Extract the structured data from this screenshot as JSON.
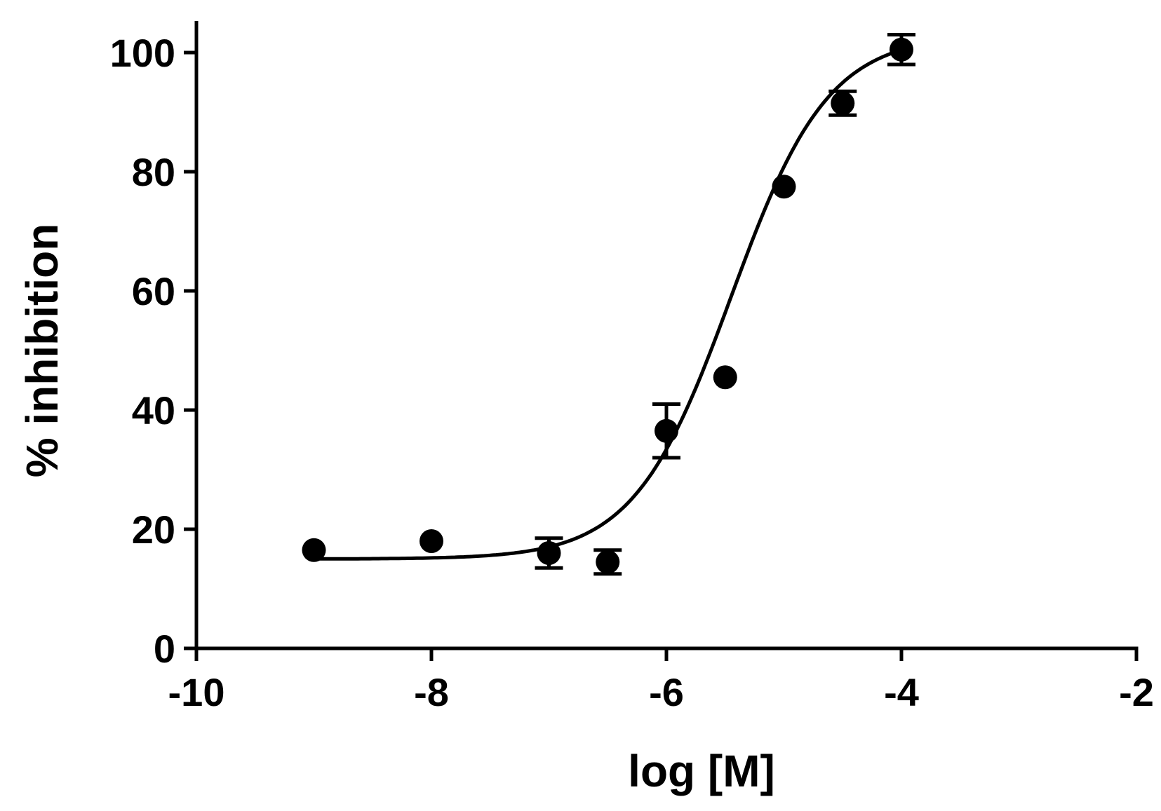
{
  "chart_data": {
    "type": "scatter",
    "title": "",
    "xlabel": "log [M]",
    "ylabel": "% inhibition",
    "xlim": [
      -10,
      -2
    ],
    "ylim": [
      0,
      105
    ],
    "xticks": [
      -10,
      -8,
      -6,
      -4,
      -2
    ],
    "yticks": [
      0,
      20,
      40,
      60,
      80,
      100
    ],
    "xtick_labels": [
      "-10",
      "-8",
      "-6",
      "-4",
      "-2"
    ],
    "ytick_labels": [
      "0",
      "20",
      "40",
      "60",
      "80",
      "100"
    ],
    "grid": false,
    "series": [
      {
        "points": [
          {
            "x": -9,
            "y": 16.5,
            "err": 0
          },
          {
            "x": -8,
            "y": 18,
            "err": 0
          },
          {
            "x": -7,
            "y": 16,
            "err": 2.5
          },
          {
            "x": -6.5,
            "y": 14.5,
            "err": 2
          },
          {
            "x": -6,
            "y": 36.5,
            "err": 4.5
          },
          {
            "x": -5.5,
            "y": 45.5,
            "err": 0
          },
          {
            "x": -5,
            "y": 77.5,
            "err": 0
          },
          {
            "x": -4.5,
            "y": 91.5,
            "err": 2
          },
          {
            "x": -4,
            "y": 100.5,
            "err": 2.5
          }
        ],
        "fit": {
          "model": "sigmoidal dose-response",
          "bottom": 15,
          "top": 103,
          "logEC50": -5.45,
          "hill": 1.05
        }
      }
    ],
    "colors": {
      "marker": "#000000",
      "line": "#000000"
    }
  }
}
